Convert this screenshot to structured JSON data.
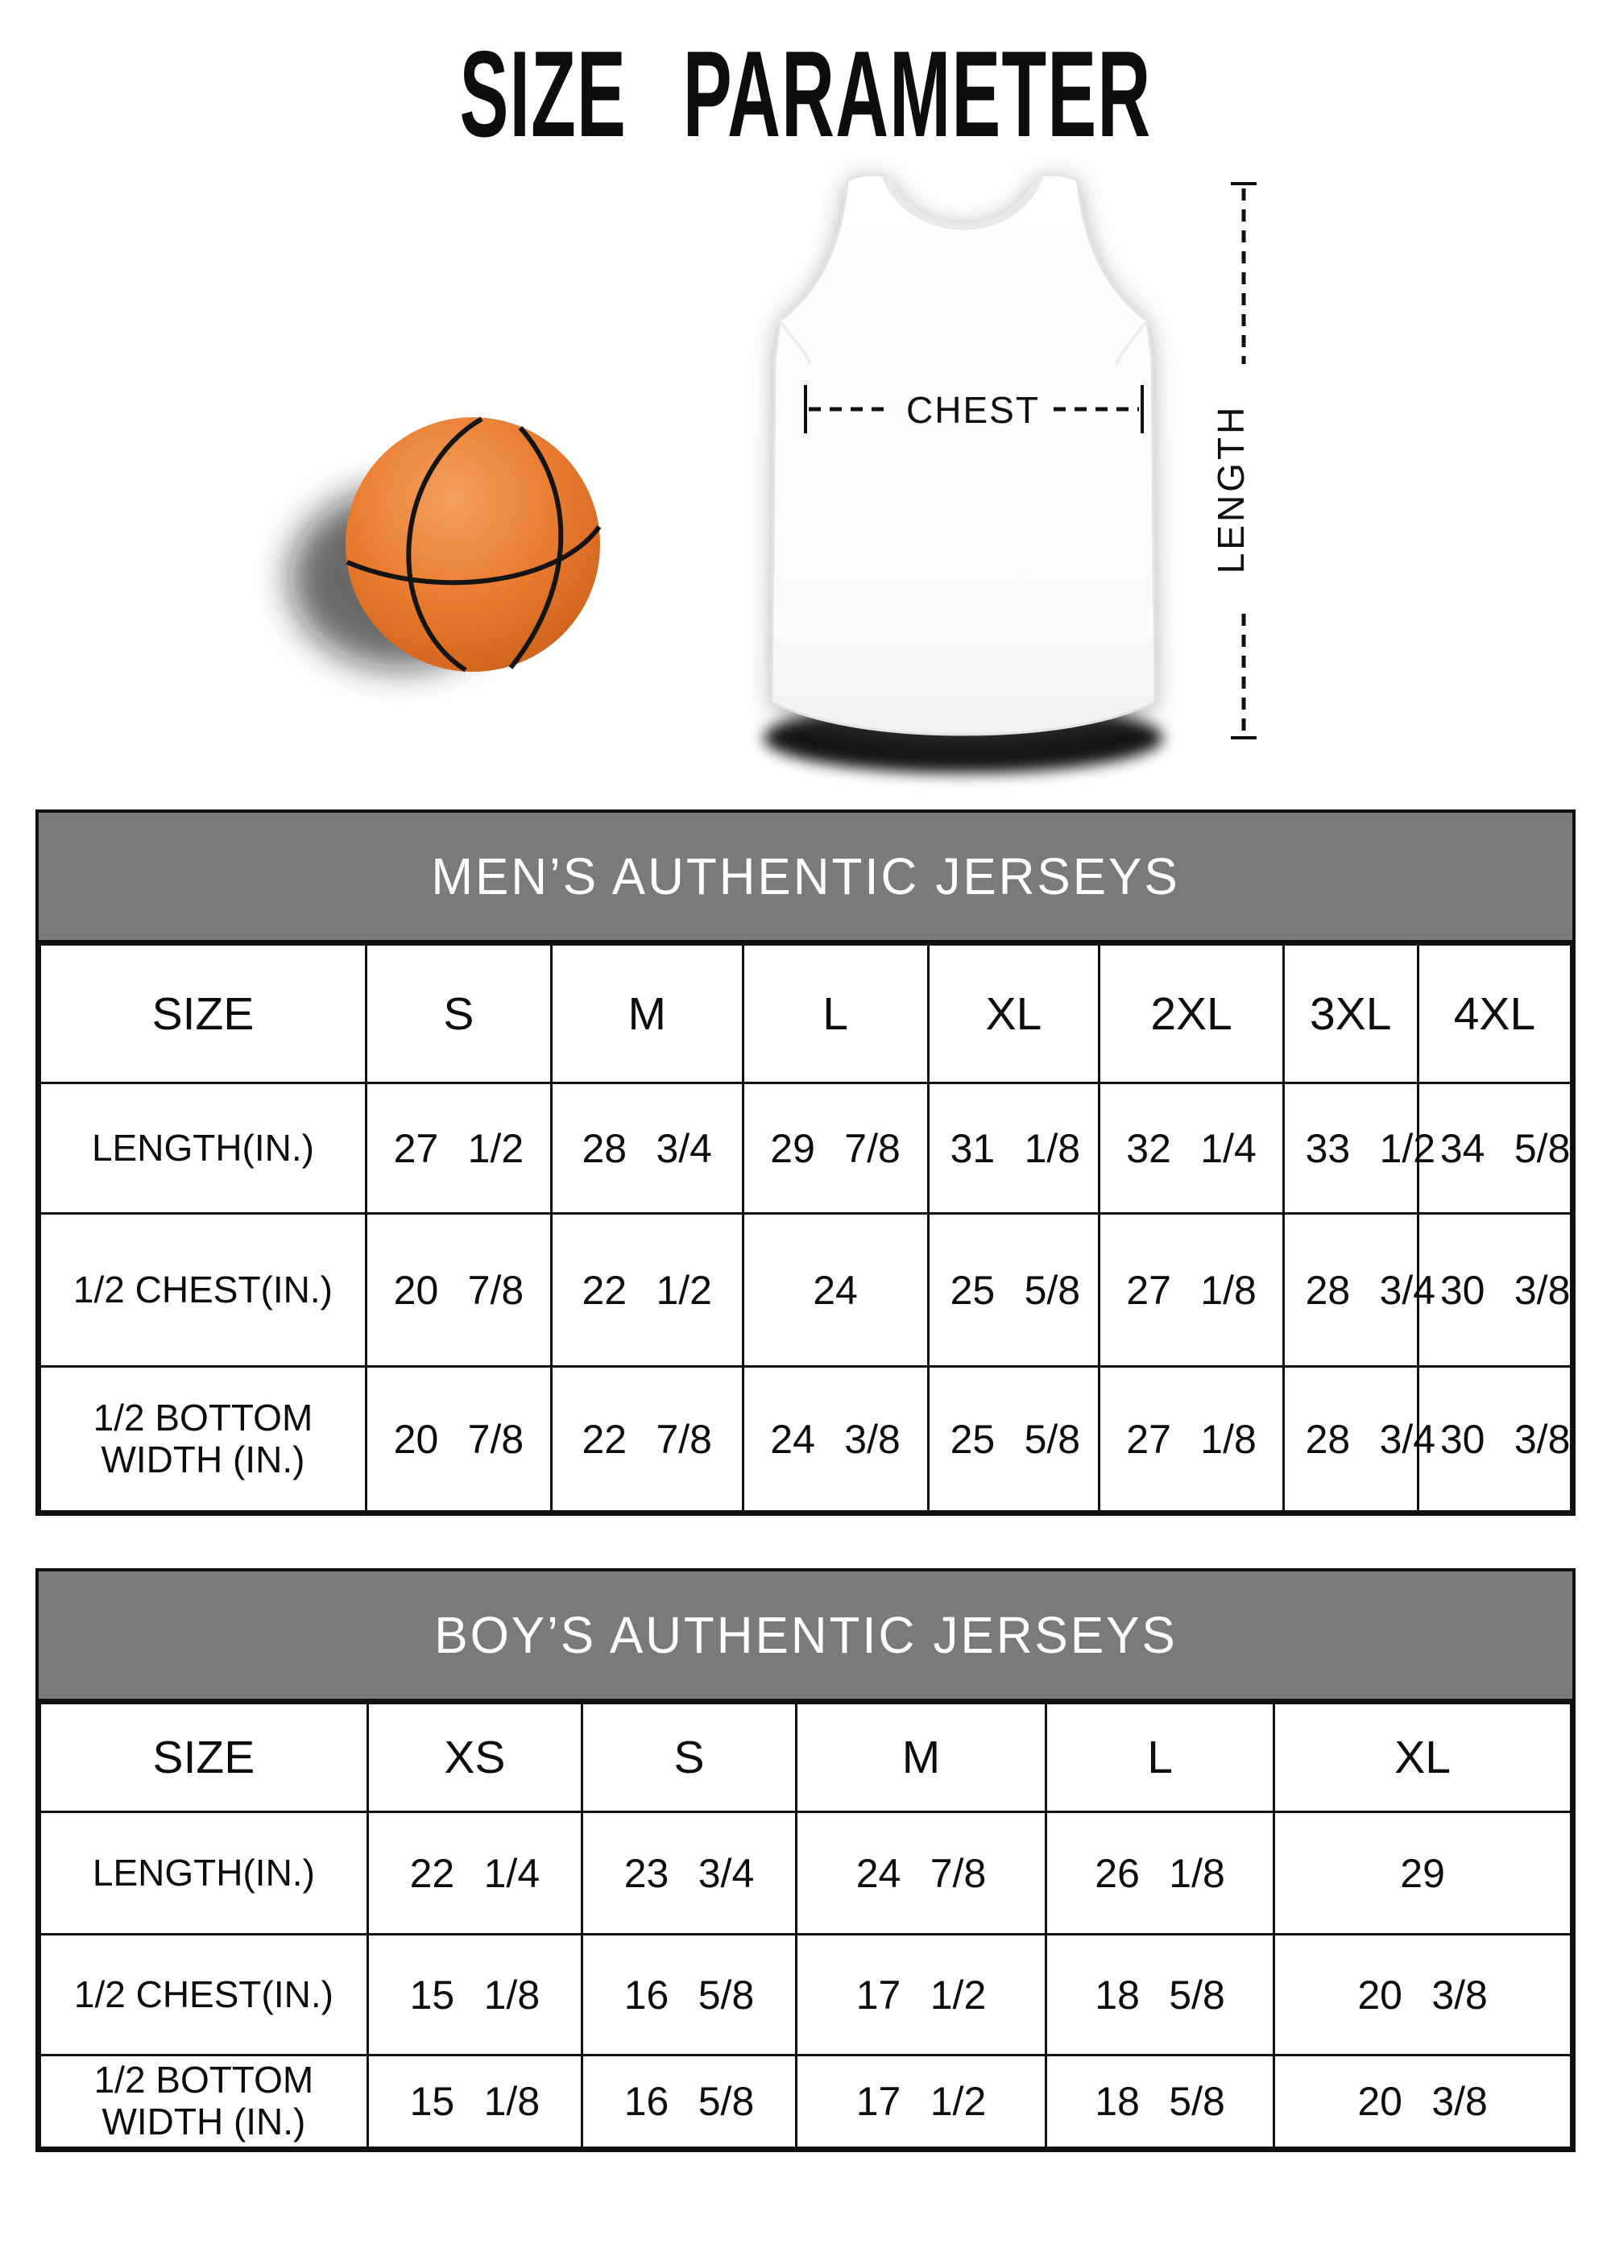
{
  "page_title": "SIZE PARAMETER",
  "diagram": {
    "chest_label": "CHEST",
    "length_label": "LENGTH"
  },
  "colors": {
    "title_text": "#0d0d0d",
    "table_header_bg": "#7a7a7a",
    "table_header_text": "#ffffff",
    "table_border": "#111111",
    "basketball_orange": "#e87a2e"
  },
  "tables": [
    {
      "header": "MEN’S AUTHENTIC JERSEYS",
      "size_label": "SIZE",
      "columns": [
        "S",
        "M",
        "L",
        "XL",
        "2XL",
        "3XL",
        "4XL"
      ],
      "rows": [
        {
          "label": "LENGTH(IN.)",
          "values": [
            "27 1/2",
            "28 3/4",
            "29 7/8",
            "31 1/8",
            "32 1/4",
            "33 1/2",
            "34 5/8"
          ]
        },
        {
          "label": "1/2 CHEST(IN.)",
          "values": [
            "20 7/8",
            "22 1/2",
            "24",
            "25 5/8",
            "27 1/8",
            "28 3/4",
            "30 3/8"
          ]
        },
        {
          "label": "1/2 BOTTOM WIDTH (IN.)",
          "values": [
            "20 7/8",
            "22 7/8",
            "24 3/8",
            "25 5/8",
            "27 1/8",
            "28 3/4",
            "30 3/8"
          ]
        }
      ]
    },
    {
      "header": "BOY’S AUTHENTIC JERSEYS",
      "size_label": "SIZE",
      "columns": [
        "XS",
        "S",
        "M",
        "L",
        "XL"
      ],
      "rows": [
        {
          "label": "LENGTH(IN.)",
          "values": [
            "22 1/4",
            "23 3/4",
            "24 7/8",
            "26 1/8",
            "29"
          ]
        },
        {
          "label": "1/2 CHEST(IN.)",
          "values": [
            "15 1/8",
            "16 5/8",
            "17 1/2",
            "18 5/8",
            "20 3/8"
          ]
        },
        {
          "label": "1/2 BOTTOM WIDTH (IN.)",
          "values": [
            "15 1/8",
            "16 5/8",
            "17 1/2",
            "18 5/8",
            "20 3/8"
          ]
        }
      ]
    }
  ]
}
